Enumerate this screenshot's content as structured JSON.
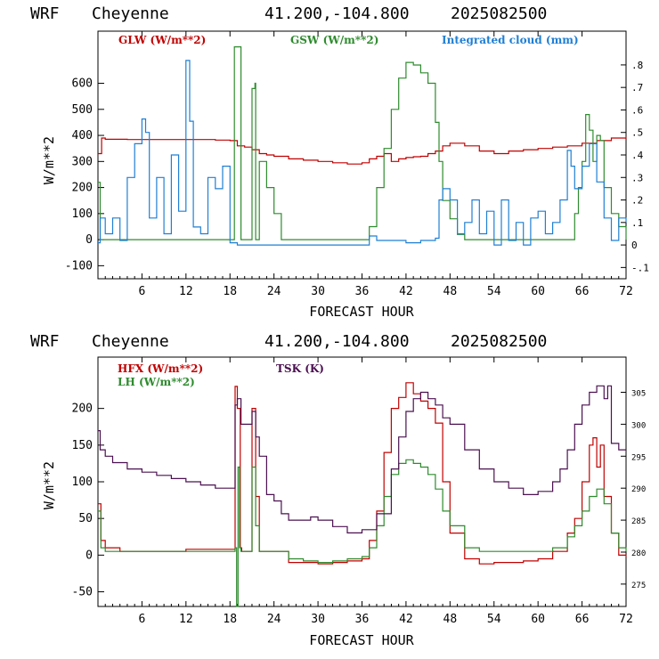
{
  "header": {
    "model": "WRF",
    "station": "Cheyenne",
    "coords": "41.200,-104.800",
    "date": "2025082500"
  },
  "colors": {
    "red": "#c00000",
    "green": "#2e8b2e",
    "blue": "#1f7fd4",
    "purple": "#4b1050"
  },
  "chart_data": [
    {
      "type": "line",
      "xlabel": "FORECAST HOUR",
      "ylabel": "W/m**2",
      "xlim": [
        0,
        72
      ],
      "ylim": [
        -150,
        800
      ],
      "xticks": [
        "6",
        "12",
        "18",
        "24",
        "30",
        "36",
        "42",
        "48",
        "54",
        "60",
        "66",
        "72"
      ],
      "yticks": [
        "-100",
        "0",
        "100",
        "200",
        "300",
        "400",
        "500",
        "600"
      ],
      "y2lim": [
        -0.15,
        0.95
      ],
      "y2ticks": [
        "-.1",
        "0",
        ".1",
        ".2",
        ".3",
        ".4",
        ".5",
        ".6",
        ".7",
        ".8"
      ],
      "series": [
        {
          "name": "GLW (W/m**2)",
          "axis": "left",
          "color": "red",
          "x": [
            0,
            0.5,
            1,
            2,
            4,
            6,
            8,
            10,
            12,
            14,
            16,
            17,
            18,
            19,
            20,
            21,
            22,
            23,
            24,
            26,
            28,
            30,
            32,
            34,
            36,
            37,
            38,
            39,
            40,
            41,
            42,
            43,
            44,
            45,
            46,
            47,
            48,
            50,
            52,
            54,
            56,
            58,
            60,
            62,
            64,
            66,
            68,
            70,
            72
          ],
          "y": [
            330,
            390,
            385,
            385,
            384,
            384,
            384,
            384,
            384,
            384,
            382,
            382,
            380,
            360,
            355,
            345,
            330,
            325,
            320,
            310,
            305,
            300,
            295,
            290,
            295,
            310,
            320,
            330,
            300,
            310,
            315,
            318,
            320,
            330,
            340,
            360,
            370,
            360,
            340,
            330,
            340,
            345,
            350,
            355,
            360,
            370,
            380,
            390,
            395
          ]
        },
        {
          "name": "GSW (W/m**2)",
          "axis": "left",
          "color": "green",
          "x": [
            0,
            0.3,
            1,
            17,
            18.5,
            18.6,
            19.4,
            19.5,
            20,
            20.5,
            21,
            21.4,
            21.5,
            22,
            23,
            24,
            25,
            26,
            36,
            37,
            38,
            39,
            40,
            41,
            42,
            43,
            44,
            45,
            46,
            46.5,
            47,
            48,
            49,
            50,
            55,
            64,
            65,
            65.5,
            66,
            66.5,
            67,
            67.5,
            68,
            68.5,
            69,
            70,
            71,
            72
          ],
          "y": [
            220,
            0,
            0,
            0,
            0,
            740,
            740,
            0,
            0,
            0,
            580,
            600,
            0,
            300,
            200,
            100,
            0,
            0,
            0,
            50,
            200,
            350,
            500,
            620,
            680,
            670,
            640,
            600,
            450,
            300,
            150,
            80,
            20,
            0,
            0,
            0,
            100,
            200,
            300,
            480,
            420,
            300,
            400,
            380,
            200,
            100,
            50,
            0
          ]
        },
        {
          "name": "Integrated cloud (mm)",
          "axis": "right",
          "color": "blue",
          "x": [
            0,
            0.3,
            1,
            2,
            3,
            4,
            5,
            6,
            6.5,
            7,
            8,
            9,
            10,
            11,
            12,
            12.5,
            13,
            14,
            15,
            16,
            17,
            18,
            19,
            20,
            36,
            37,
            38,
            40,
            42,
            44,
            46,
            46.5,
            47,
            48,
            49,
            50,
            51,
            52,
            53,
            54,
            55,
            56,
            57,
            58,
            59,
            60,
            61,
            62,
            63,
            64,
            64.5,
            65,
            66,
            67,
            68,
            69,
            70,
            71,
            72
          ],
          "x_note": "",
          "y": [
            0.01,
            0.12,
            0.05,
            0.12,
            0.02,
            0.3,
            0.45,
            0.56,
            0.5,
            0.12,
            0.3,
            0.05,
            0.4,
            0.15,
            0.82,
            0.55,
            0.08,
            0.05,
            0.3,
            0.25,
            0.35,
            0.01,
            0.0,
            0.0,
            0.0,
            0.04,
            0.02,
            0.02,
            0.01,
            0.02,
            0.03,
            0.2,
            0.25,
            0.2,
            0.05,
            0.1,
            0.2,
            0.05,
            0.15,
            0.0,
            0.2,
            0.02,
            0.1,
            0.0,
            0.12,
            0.15,
            0.05,
            0.1,
            0.2,
            0.42,
            0.35,
            0.25,
            0.35,
            0.45,
            0.28,
            0.12,
            0.02,
            0.12,
            0.1
          ]
        }
      ]
    },
    {
      "type": "line",
      "xlabel": "FORECAST HOUR",
      "ylabel": "W/m**2",
      "xlim": [
        0,
        72
      ],
      "ylim": [
        -70,
        270
      ],
      "xticks": [
        "6",
        "12",
        "18",
        "24",
        "30",
        "36",
        "42",
        "48",
        "54",
        "60",
        "66",
        "72"
      ],
      "yticks": [
        "-50",
        "0",
        "50",
        "100",
        "150",
        "200"
      ],
      "y2lim": [
        271.5,
        310.5
      ],
      "y2ticks": [
        "275",
        "280",
        "285",
        "290",
        "295",
        "300",
        "305"
      ],
      "series": [
        {
          "name": "HFX (W/m**2)",
          "axis": "left",
          "color": "red",
          "x": [
            0,
            0.4,
            1,
            3,
            6,
            12,
            18,
            18.7,
            19,
            19.4,
            19.6,
            20,
            21,
            21.5,
            22,
            23,
            24,
            26,
            28,
            30,
            32,
            34,
            36,
            37,
            38,
            39,
            40,
            41,
            42,
            43,
            44,
            45,
            46,
            47,
            48,
            50,
            52,
            54,
            56,
            58,
            60,
            62,
            64,
            65,
            66,
            67,
            67.5,
            68,
            68.5,
            69,
            70,
            71,
            72
          ],
          "y": [
            70,
            20,
            10,
            5,
            5,
            8,
            8,
            230,
            200,
            10,
            5,
            5,
            200,
            80,
            5,
            5,
            5,
            -10,
            -10,
            -12,
            -10,
            -8,
            -5,
            20,
            60,
            140,
            200,
            215,
            235,
            220,
            210,
            200,
            180,
            100,
            30,
            -5,
            -12,
            -10,
            -10,
            -8,
            -5,
            5,
            30,
            50,
            100,
            150,
            160,
            120,
            150,
            80,
            30,
            0,
            -2
          ]
        },
        {
          "name": "LH (W/m**2)",
          "axis": "left",
          "color": "green",
          "x": [
            0,
            0.4,
            1,
            3,
            6,
            12,
            18,
            18.7,
            18.9,
            19.1,
            19.3,
            19.5,
            20,
            21,
            21.5,
            22,
            23,
            24,
            26,
            28,
            30,
            32,
            34,
            36,
            37,
            38,
            39,
            40,
            41,
            42,
            43,
            44,
            45,
            46,
            47,
            48,
            50,
            52,
            54,
            56,
            58,
            60,
            62,
            64,
            65,
            66,
            67,
            68,
            69,
            70,
            71,
            72
          ],
          "y": [
            60,
            10,
            5,
            5,
            5,
            5,
            5,
            10,
            -70,
            120,
            10,
            5,
            5,
            120,
            40,
            5,
            5,
            5,
            -5,
            -8,
            -10,
            -8,
            -5,
            -2,
            10,
            40,
            80,
            110,
            125,
            130,
            125,
            120,
            110,
            90,
            60,
            40,
            10,
            5,
            5,
            5,
            5,
            5,
            10,
            25,
            40,
            60,
            80,
            90,
            70,
            30,
            10,
            5
          ]
        },
        {
          "name": "TSK (K)",
          "axis": "right",
          "color": "purple",
          "x": [
            0,
            0.3,
            1,
            2,
            4,
            6,
            8,
            10,
            12,
            14,
            16,
            18,
            18.7,
            19,
            19.5,
            20,
            21,
            21.5,
            22,
            23,
            24,
            25,
            26,
            28,
            29,
            30,
            32,
            34,
            36,
            38,
            40,
            41,
            42,
            43,
            44,
            45,
            46,
            47,
            48,
            50,
            52,
            54,
            56,
            58,
            60,
            62,
            63,
            64,
            65,
            66,
            67,
            68,
            69,
            69.5,
            70,
            71,
            72
          ],
          "y": [
            299,
            296,
            295,
            294,
            293,
            292.5,
            292,
            291.5,
            291,
            290.5,
            290,
            290,
            303,
            304,
            300,
            300,
            302,
            298,
            295,
            289,
            288,
            286,
            285,
            285,
            285.5,
            285,
            284,
            283,
            283.5,
            286,
            293,
            298,
            302,
            304,
            305,
            304,
            303,
            301,
            300,
            296,
            293,
            291,
            290,
            289,
            289.5,
            291,
            293,
            296,
            300,
            303,
            305,
            306,
            304,
            306,
            297,
            296,
            296
          ]
        }
      ]
    }
  ]
}
